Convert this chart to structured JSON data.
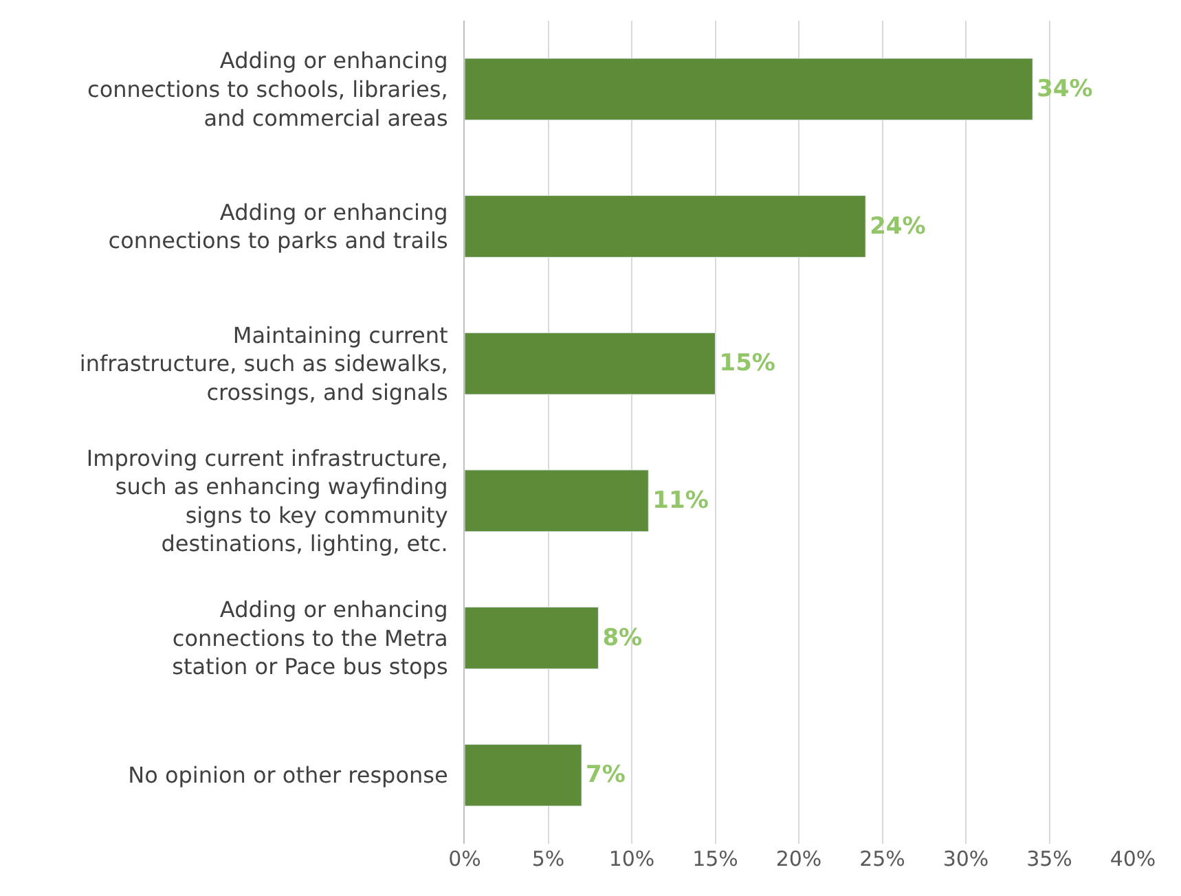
{
  "chart_data": {
    "type": "bar",
    "orientation": "horizontal",
    "categories": [
      "Adding or enhancing\nconnections to schools, libraries,\nand commercial areas",
      "Adding or enhancing\nconnections to parks and trails",
      "Maintaining current\ninfrastructure, such as sidewalks,\ncrossings, and signals",
      "Improving current infrastructure,\nsuch as enhancing wayfinding\nsigns to key community\ndestinations, lighting, etc.",
      "Adding or enhancing\nconnections to the Metra\nstation or Pace bus stops",
      "No opinion or other response"
    ],
    "values": [
      34,
      24,
      15,
      11,
      8,
      7
    ],
    "value_labels": [
      "34%",
      "24%",
      "15%",
      "11%",
      "8%",
      "7%"
    ],
    "color": "#5e8b37",
    "xlim": [
      0,
      40
    ],
    "xticks": [
      {
        "value": 0,
        "label": "0%"
      },
      {
        "value": 5,
        "label": "5%"
      },
      {
        "value": 10,
        "label": "10%"
      },
      {
        "value": 15,
        "label": "15%"
      },
      {
        "value": 20,
        "label": "20%"
      },
      {
        "value": 25,
        "label": "25%"
      },
      {
        "value": 30,
        "label": "30%"
      },
      {
        "value": 35,
        "label": "35%"
      },
      {
        "value": 40,
        "label": "40%"
      }
    ],
    "grid": "x",
    "legend": false
  }
}
